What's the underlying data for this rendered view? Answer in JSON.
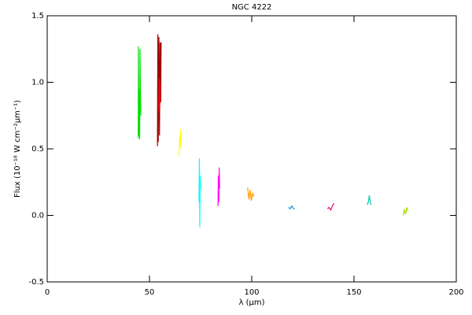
{
  "chart_data": {
    "type": "line",
    "title": "NGC 4222",
    "xlabel": "λ (μm)",
    "ylabel": "Flux (10⁻¹⁸ W cm⁻²μm⁻¹)",
    "xlim": [
      0,
      200
    ],
    "xticks": [
      0,
      50,
      100,
      150,
      200
    ],
    "ylim": [
      -0.5,
      1.5
    ],
    "yticks": [
      -0.5,
      {
        "value": 0,
        "label": "0.0"
      },
      0.5,
      {
        "value": 1,
        "label": "1.0"
      },
      1.5
    ],
    "series": [
      {
        "color": "#00e000",
        "x": [
          44.5,
          44.6,
          44.8,
          45.0,
          45.2,
          45.4,
          45.6,
          45.8
        ],
        "values": [
          0.58,
          1.27,
          0.6,
          0.95,
          0.57,
          1.25,
          0.9,
          0.75
        ]
      },
      {
        "color": "#a00000",
        "x": [
          53.9,
          54.1,
          54.3,
          54.6,
          54.9,
          55.2,
          55.5,
          55.7
        ],
        "values": [
          0.52,
          1.36,
          0.55,
          1.34,
          0.6,
          1.3,
          0.85,
          1.3
        ]
      },
      {
        "color": "#ff0000",
        "x": [
          54.6,
          54.8,
          55.0,
          55.2
        ],
        "values": [
          0.78,
          1.03,
          0.8,
          1.0
        ]
      },
      {
        "color": "#ffff00",
        "x": [
          64.5,
          64.8,
          65.0,
          65.3,
          65.6
        ],
        "values": [
          0.45,
          0.6,
          0.5,
          0.65,
          0.55
        ]
      },
      {
        "color": "#00ffff",
        "x": [
          74.2,
          74.4,
          74.6,
          74.8,
          75.0
        ],
        "values": [
          0.1,
          0.43,
          -0.09,
          0.3,
          0.2
        ]
      },
      {
        "color": "#ff00ff",
        "x": [
          83.5,
          83.7,
          83.9,
          84.1,
          84.3
        ],
        "values": [
          0.07,
          0.3,
          0.1,
          0.36,
          0.2
        ]
      },
      {
        "color": "#ff9900",
        "x": [
          98.0,
          98.6,
          99.2,
          99.8,
          100.4,
          101.0
        ],
        "values": [
          0.21,
          0.12,
          0.19,
          0.11,
          0.17,
          0.14
        ]
      },
      {
        "color": "#0099dd",
        "x": [
          118.0,
          118.8,
          119.6,
          120.4,
          121.0
        ],
        "values": [
          0.06,
          0.05,
          0.07,
          0.05,
          0.05
        ]
      },
      {
        "color": "#ee0077",
        "x": [
          137.0,
          137.8,
          138.6,
          139.4,
          140.2
        ],
        "values": [
          0.05,
          0.06,
          0.04,
          0.07,
          0.09
        ]
      },
      {
        "color": "#00ccaa",
        "x": [
          156.5,
          157.0,
          157.5,
          158.0,
          158.5
        ],
        "values": [
          0.08,
          0.1,
          0.15,
          0.09,
          0.08
        ]
      },
      {
        "color": "#aadd00",
        "x": [
          174.0,
          174.6,
          175.2,
          175.8,
          176.4
        ],
        "values": [
          0.0,
          0.04,
          0.01,
          0.06,
          0.03
        ]
      }
    ]
  }
}
